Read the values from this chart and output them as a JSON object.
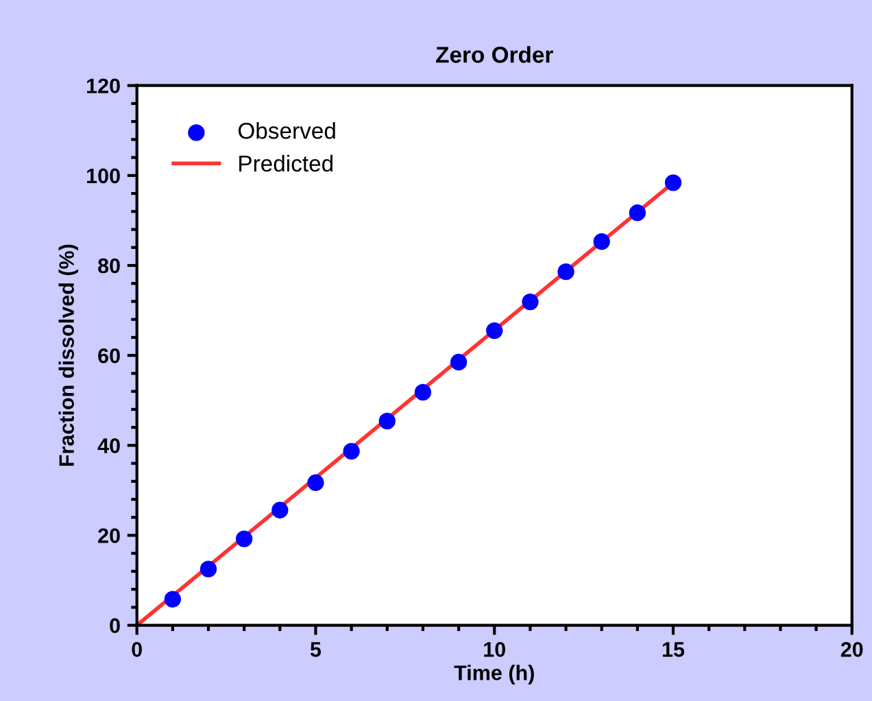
{
  "chart_data": {
    "type": "scatter",
    "title": "Zero Order",
    "xlabel": "Time (h)",
    "ylabel": "Fraction dissolved (%)",
    "x": [
      1,
      2,
      3,
      4,
      5,
      6,
      7,
      8,
      9,
      10,
      11,
      12,
      13,
      14,
      15
    ],
    "series": [
      {
        "name": "Observed",
        "color": "#0000ff",
        "marker": "circle",
        "values": [
          5.8,
          12.5,
          19.2,
          25.6,
          31.7,
          38.7,
          45.4,
          51.8,
          58.5,
          65.5,
          71.9,
          78.6,
          85.3,
          91.7,
          98.4
        ]
      },
      {
        "name": "Predicted",
        "type": "line",
        "color": "#ff3333",
        "marker": "none",
        "line_style": "solid",
        "x": [
          0,
          15
        ],
        "values": [
          0,
          98.4
        ]
      }
    ],
    "xlim": [
      0,
      20
    ],
    "xticks": [
      0,
      5,
      10,
      15,
      20
    ],
    "ylim": [
      0,
      120
    ],
    "yticks": [
      0,
      20,
      40,
      60,
      80,
      100,
      120
    ],
    "grid": false,
    "legend": "top left"
  }
}
